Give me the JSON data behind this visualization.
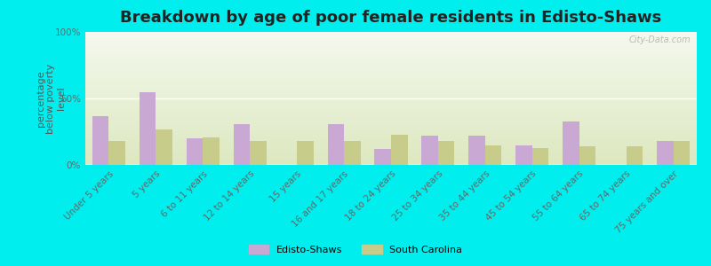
{
  "title": "Breakdown by age of poor female residents in Edisto-Shaws",
  "ylabel": "percentage\nbelow poverty\nlevel",
  "categories": [
    "Under 5 years",
    "5 years",
    "6 to 11 years",
    "12 to 14 years",
    "15 years",
    "16 and 17 years",
    "18 to 24 years",
    "25 to 34 years",
    "35 to 44 years",
    "45 to 54 years",
    "55 to 64 years",
    "65 to 74 years",
    "75 years and over"
  ],
  "edisto_values": [
    37,
    55,
    20,
    31,
    0,
    31,
    12,
    22,
    22,
    15,
    33,
    0,
    18
  ],
  "sc_values": [
    18,
    27,
    21,
    18,
    18,
    18,
    23,
    18,
    15,
    13,
    14,
    14,
    18
  ],
  "edisto_color": "#c9a8d4",
  "sc_color": "#c8cc8a",
  "background_top": "#f5f9ee",
  "background_bottom": "#dde8c0",
  "outer_bg": "#00eeee",
  "ylim": [
    0,
    100
  ],
  "yticks": [
    0,
    50,
    100
  ],
  "ytick_labels": [
    "0%",
    "50%",
    "100%"
  ],
  "bar_width": 0.35,
  "title_fontsize": 13,
  "tick_fontsize": 7.5,
  "ylabel_fontsize": 8,
  "legend_labels": [
    "Edisto-Shaws",
    "South Carolina"
  ],
  "watermark": "City-Data.com"
}
